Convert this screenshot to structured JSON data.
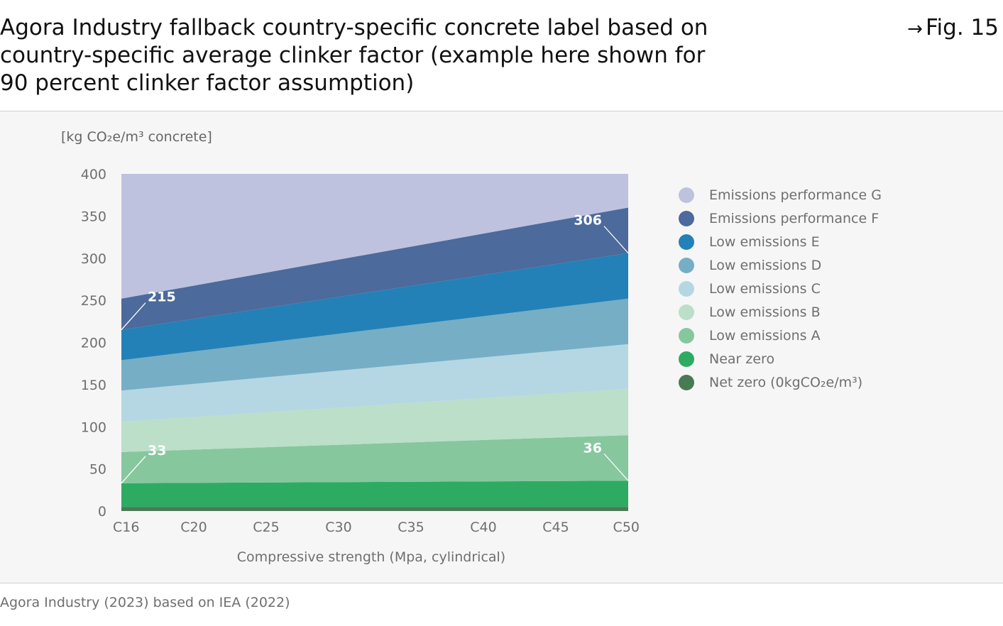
{
  "header": {
    "title": "Agora Industry fallback country-specific concrete label based on country-specific average clinker factor (example here shown for 90 percent clinker factor assumption)",
    "fig_ref": "Fig. 15"
  },
  "footer": {
    "source": "Agora Industry (2023) based on IEA (2022)"
  },
  "chart_data": {
    "type": "area",
    "unit_label": "[kg CO₂e/m³ concrete]",
    "xlabel": "Compressive strength (Mpa, cylindrical)",
    "ylabel": "",
    "categories": [
      "C16",
      "C20",
      "C25",
      "C30",
      "C35",
      "C40",
      "C45",
      "C50"
    ],
    "ylim": [
      0,
      400
    ],
    "yticks": [
      0,
      50,
      100,
      150,
      200,
      250,
      300,
      350,
      400
    ],
    "grid": false,
    "legend_position": "right",
    "stacked_boundaries_note": "band upper boundaries at C16 and C50, linear in between",
    "series": [
      {
        "name": "Net zero (0kgCO₂e/m³)",
        "color": "#4a7a53",
        "lower": [
          0,
          0
        ],
        "upper": [
          5,
          5
        ]
      },
      {
        "name": "Near zero",
        "color": "#2eab62",
        "lower": [
          5,
          5
        ],
        "upper": [
          33,
          36
        ]
      },
      {
        "name": "Low emissions A",
        "color": "#86c79e",
        "lower": [
          33,
          36
        ],
        "upper": [
          70,
          90
        ]
      },
      {
        "name": "Low emissions B",
        "color": "#bbdfc8",
        "lower": [
          70,
          90
        ],
        "upper": [
          106,
          145
        ]
      },
      {
        "name": "Low emissions C",
        "color": "#b4d7e3",
        "lower": [
          106,
          145
        ],
        "upper": [
          143,
          198
        ]
      },
      {
        "name": "Low emissions D",
        "color": "#76aec6",
        "lower": [
          143,
          198
        ],
        "upper": [
          179,
          252
        ]
      },
      {
        "name": "Low emissions E",
        "color": "#2381b7",
        "lower": [
          179,
          252
        ],
        "upper": [
          215,
          306
        ]
      },
      {
        "name": "Emissions performance F",
        "color": "#4c6a9b",
        "lower": [
          215,
          306
        ],
        "upper": [
          252,
          360
        ]
      },
      {
        "name": "Emissions performance G",
        "color": "#bfc2de",
        "lower": [
          252,
          360
        ],
        "upper": [
          400,
          400
        ]
      }
    ],
    "annotations": [
      {
        "text": "215",
        "category": "C16",
        "value": 215
      },
      {
        "text": "306",
        "category": "C50",
        "value": 306
      },
      {
        "text": "33",
        "category": "C16",
        "value": 33
      },
      {
        "text": "36",
        "category": "C50",
        "value": 36
      }
    ],
    "legend_order": [
      "Emissions performance G",
      "Emissions performance F",
      "Low emissions E",
      "Low emissions D",
      "Low emissions C",
      "Low emissions B",
      "Low emissions A",
      "Near zero",
      "Net zero (0kgCO₂e/m³)"
    ]
  }
}
